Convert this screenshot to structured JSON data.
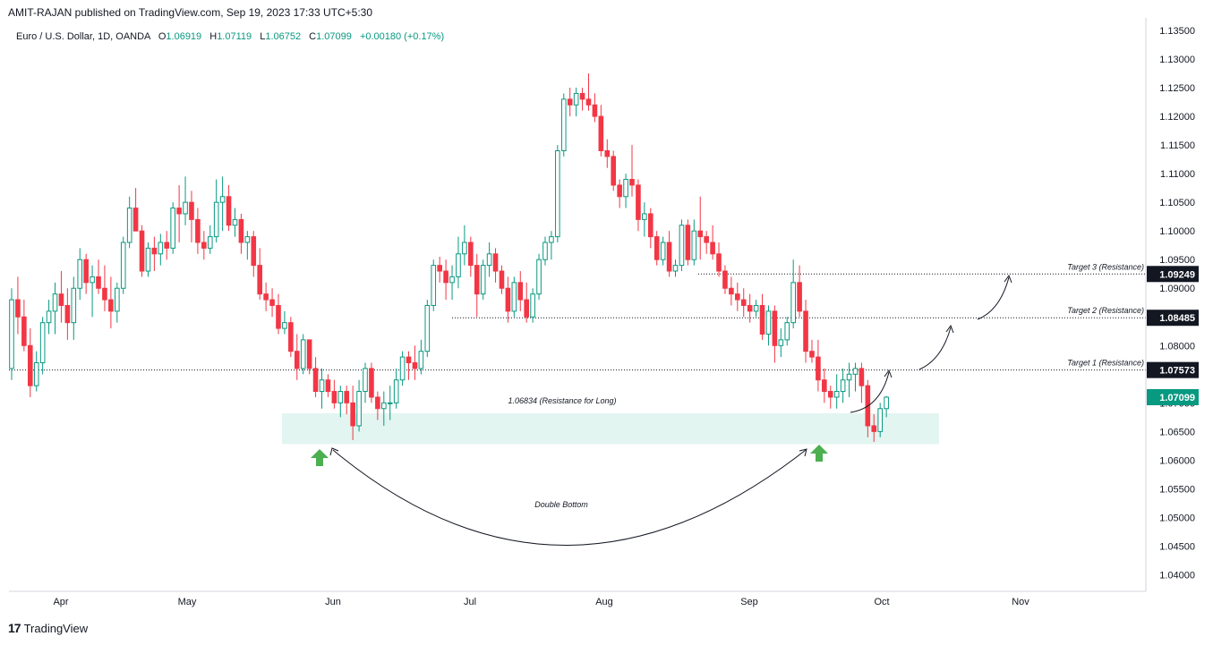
{
  "header": {
    "publisher": "AMIT-RAJAN published on TradingView.com, Sep 19, 2023 17:33 UTC+5:30"
  },
  "legend": {
    "symbol": "Euro / U.S. Dollar, 1D, OANDA",
    "open_label": "O",
    "open": "1.06919",
    "high_label": "H",
    "high": "1.07119",
    "low_label": "L",
    "low": "1.06752",
    "close_label": "C",
    "close": "1.07099",
    "change": "+0.00180 (+0.17%)"
  },
  "footer": {
    "logo_text": "TradingView",
    "logo_icon": "tradingview-logo-icon"
  },
  "colors": {
    "up": "#089981",
    "down": "#f23645",
    "zone": "#e3f5f1",
    "arrow": "#4caf50",
    "last_price_bg": "#089981",
    "target_bg": "#131722"
  },
  "chart_data": {
    "type": "candlestick",
    "symbol": "EURUSD",
    "timeframe": "1D",
    "y_axis": {
      "ticks": [
        "1.13500",
        "1.13000",
        "1.12500",
        "1.12000",
        "1.11500",
        "1.11000",
        "1.10500",
        "1.10000",
        "1.09500",
        "1.09000",
        "1.08500",
        "1.08000",
        "1.07500",
        "1.07000",
        "1.06500",
        "1.06000",
        "1.05500",
        "1.05000",
        "1.04500",
        "1.04000"
      ],
      "range": [
        1.0375,
        1.1365
      ]
    },
    "x_axis": {
      "ticks": [
        "Apr",
        "May",
        "Jun",
        "Jul",
        "Aug",
        "Sep",
        "Oct",
        "Nov"
      ]
    },
    "ohlc": [
      [
        1.076,
        1.09,
        1.074,
        1.088
      ],
      [
        1.088,
        1.092,
        1.082,
        1.085
      ],
      [
        1.085,
        1.088,
        1.079,
        1.08
      ],
      [
        1.08,
        1.083,
        1.071,
        1.073
      ],
      [
        1.073,
        1.079,
        1.072,
        1.077
      ],
      [
        1.077,
        1.085,
        1.075,
        1.084
      ],
      [
        1.084,
        1.088,
        1.082,
        1.086
      ],
      [
        1.086,
        1.091,
        1.082,
        1.089
      ],
      [
        1.089,
        1.093,
        1.084,
        1.087
      ],
      [
        1.087,
        1.09,
        1.081,
        1.084
      ],
      [
        1.084,
        1.092,
        1.081,
        1.09
      ],
      [
        1.09,
        1.097,
        1.088,
        1.095
      ],
      [
        1.095,
        1.096,
        1.089,
        1.091
      ],
      [
        1.091,
        1.094,
        1.085,
        1.092
      ],
      [
        1.092,
        1.095,
        1.089,
        1.09
      ],
      [
        1.09,
        1.094,
        1.086,
        1.088
      ],
      [
        1.088,
        1.092,
        1.083,
        1.086
      ],
      [
        1.086,
        1.091,
        1.084,
        1.09
      ],
      [
        1.09,
        1.099,
        1.089,
        1.098
      ],
      [
        1.098,
        1.106,
        1.097,
        1.104
      ],
      [
        1.104,
        1.1075,
        1.1,
        1.1
      ],
      [
        1.1,
        1.101,
        1.092,
        1.093
      ],
      [
        1.093,
        1.098,
        1.092,
        1.097
      ],
      [
        1.097,
        1.099,
        1.093,
        1.096
      ],
      [
        1.096,
        1.0995,
        1.094,
        1.098
      ],
      [
        1.098,
        1.1,
        1.095,
        1.097
      ],
      [
        1.097,
        1.105,
        1.096,
        1.104
      ],
      [
        1.104,
        1.108,
        1.098,
        1.103
      ],
      [
        1.103,
        1.1095,
        1.101,
        1.105
      ],
      [
        1.105,
        1.107,
        1.098,
        1.102
      ],
      [
        1.102,
        1.104,
        1.096,
        1.098
      ],
      [
        1.098,
        1.1,
        1.095,
        1.097
      ],
      [
        1.097,
        1.101,
        1.096,
        1.099
      ],
      [
        1.099,
        1.109,
        1.098,
        1.105
      ],
      [
        1.105,
        1.1095,
        1.1,
        1.106
      ],
      [
        1.106,
        1.108,
        1.1,
        1.101
      ],
      [
        1.101,
        1.104,
        1.099,
        1.102
      ],
      [
        1.102,
        1.103,
        1.096,
        1.098
      ],
      [
        1.098,
        1.1,
        1.095,
        1.099
      ],
      [
        1.099,
        1.1,
        1.092,
        1.094
      ],
      [
        1.094,
        1.097,
        1.088,
        1.089
      ],
      [
        1.089,
        1.091,
        1.086,
        1.088
      ],
      [
        1.088,
        1.09,
        1.085,
        1.087
      ],
      [
        1.087,
        1.089,
        1.082,
        1.083
      ],
      [
        1.083,
        1.086,
        1.082,
        1.084
      ],
      [
        1.084,
        1.085,
        1.078,
        1.079
      ],
      [
        1.079,
        1.082,
        1.074,
        1.076
      ],
      [
        1.076,
        1.082,
        1.075,
        1.081
      ],
      [
        1.081,
        1.081,
        1.075,
        1.076
      ],
      [
        1.076,
        1.078,
        1.071,
        1.072
      ],
      [
        1.072,
        1.076,
        1.069,
        1.074
      ],
      [
        1.074,
        1.075,
        1.071,
        1.072
      ],
      [
        1.072,
        1.074,
        1.069,
        1.07
      ],
      [
        1.07,
        1.073,
        1.0675,
        1.072
      ],
      [
        1.072,
        1.073,
        1.068,
        1.07
      ],
      [
        1.07,
        1.073,
        1.0635,
        1.066
      ],
      [
        1.066,
        1.074,
        1.065,
        1.072
      ],
      [
        1.072,
        1.077,
        1.07,
        1.076
      ],
      [
        1.076,
        1.077,
        1.07,
        1.071
      ],
      [
        1.071,
        1.072,
        1.067,
        1.069
      ],
      [
        1.069,
        1.072,
        1.066,
        1.07
      ],
      [
        1.07,
        1.073,
        1.067,
        1.07
      ],
      [
        1.07,
        1.076,
        1.069,
        1.074
      ],
      [
        1.074,
        1.079,
        1.073,
        1.078
      ],
      [
        1.078,
        1.079,
        1.074,
        1.077
      ],
      [
        1.077,
        1.08,
        1.074,
        1.076
      ],
      [
        1.076,
        1.081,
        1.075,
        1.079
      ],
      [
        1.079,
        1.088,
        1.078,
        1.087
      ],
      [
        1.087,
        1.095,
        1.086,
        1.094
      ],
      [
        1.094,
        1.0955,
        1.091,
        1.093
      ],
      [
        1.093,
        1.095,
        1.088,
        1.091
      ],
      [
        1.091,
        1.094,
        1.088,
        1.092
      ],
      [
        1.092,
        1.099,
        1.09,
        1.096
      ],
      [
        1.096,
        1.101,
        1.094,
        1.098
      ],
      [
        1.098,
        1.099,
        1.092,
        1.094
      ],
      [
        1.094,
        1.096,
        1.085,
        1.089
      ],
      [
        1.089,
        1.095,
        1.088,
        1.094
      ],
      [
        1.094,
        1.098,
        1.092,
        1.096
      ],
      [
        1.096,
        1.097,
        1.091,
        1.093
      ],
      [
        1.093,
        1.094,
        1.089,
        1.09
      ],
      [
        1.09,
        1.092,
        1.084,
        1.086
      ],
      [
        1.086,
        1.092,
        1.085,
        1.091
      ],
      [
        1.091,
        1.093,
        1.086,
        1.088
      ],
      [
        1.088,
        1.091,
        1.084,
        1.085
      ],
      [
        1.085,
        1.09,
        1.084,
        1.089
      ],
      [
        1.089,
        1.096,
        1.088,
        1.095
      ],
      [
        1.095,
        1.099,
        1.094,
        1.098
      ],
      [
        1.098,
        1.1,
        1.095,
        1.099
      ],
      [
        1.099,
        1.115,
        1.098,
        1.114
      ],
      [
        1.114,
        1.124,
        1.113,
        1.123
      ],
      [
        1.123,
        1.125,
        1.12,
        1.122
      ],
      [
        1.122,
        1.125,
        1.12,
        1.124
      ],
      [
        1.124,
        1.125,
        1.121,
        1.123
      ],
      [
        1.123,
        1.1275,
        1.121,
        1.122
      ],
      [
        1.122,
        1.124,
        1.119,
        1.12
      ],
      [
        1.12,
        1.122,
        1.113,
        1.114
      ],
      [
        1.114,
        1.116,
        1.111,
        1.113
      ],
      [
        1.113,
        1.114,
        1.107,
        1.108
      ],
      [
        1.108,
        1.109,
        1.104,
        1.106
      ],
      [
        1.106,
        1.11,
        1.104,
        1.109
      ],
      [
        1.109,
        1.115,
        1.106,
        1.108
      ],
      [
        1.108,
        1.109,
        1.1,
        1.102
      ],
      [
        1.102,
        1.105,
        1.099,
        1.103
      ],
      [
        1.103,
        1.104,
        1.097,
        1.099
      ],
      [
        1.099,
        1.1,
        1.094,
        1.095
      ],
      [
        1.095,
        1.099,
        1.094,
        1.098
      ],
      [
        1.098,
        1.1,
        1.092,
        1.093
      ],
      [
        1.093,
        1.095,
        1.092,
        1.094
      ],
      [
        1.094,
        1.102,
        1.093,
        1.101
      ],
      [
        1.101,
        1.102,
        1.094,
        1.095
      ],
      [
        1.095,
        1.102,
        1.094,
        1.1
      ],
      [
        1.1,
        1.106,
        1.095,
        1.099
      ],
      [
        1.099,
        1.1,
        1.096,
        1.098
      ],
      [
        1.098,
        1.101,
        1.095,
        1.096
      ],
      [
        1.096,
        1.098,
        1.092,
        1.093
      ],
      [
        1.093,
        1.094,
        1.089,
        1.09
      ],
      [
        1.09,
        1.092,
        1.087,
        1.089
      ],
      [
        1.089,
        1.091,
        1.086,
        1.088
      ],
      [
        1.088,
        1.09,
        1.085,
        1.087
      ],
      [
        1.087,
        1.089,
        1.084,
        1.086
      ],
      [
        1.086,
        1.088,
        1.085,
        1.087
      ],
      [
        1.087,
        1.089,
        1.081,
        1.082
      ],
      [
        1.082,
        1.087,
        1.08,
        1.086
      ],
      [
        1.086,
        1.087,
        1.077,
        1.08
      ],
      [
        1.08,
        1.083,
        1.078,
        1.081
      ],
      [
        1.081,
        1.085,
        1.08,
        1.084
      ],
      [
        1.084,
        1.095,
        1.083,
        1.091
      ],
      [
        1.091,
        1.094,
        1.085,
        1.086
      ],
      [
        1.086,
        1.088,
        1.077,
        1.079
      ],
      [
        1.079,
        1.081,
        1.077,
        1.078
      ],
      [
        1.078,
        1.081,
        1.072,
        1.074
      ],
      [
        1.074,
        1.076,
        1.07,
        1.072
      ],
      [
        1.072,
        1.073,
        1.069,
        1.071
      ],
      [
        1.071,
        1.075,
        1.069,
        1.072
      ],
      [
        1.072,
        1.076,
        1.07,
        1.074
      ],
      [
        1.074,
        1.077,
        1.071,
        1.075
      ],
      [
        1.075,
        1.077,
        1.072,
        1.076
      ],
      [
        1.076,
        1.077,
        1.07,
        1.073
      ],
      [
        1.073,
        1.074,
        1.064,
        1.066
      ],
      [
        1.066,
        1.068,
        1.0632,
        1.065
      ],
      [
        1.065,
        1.07,
        1.064,
        1.069
      ],
      [
        1.069,
        1.0712,
        1.0675,
        1.071
      ]
    ],
    "levels": [
      {
        "label": "Target 1 (Resistance)",
        "value": "1.07573",
        "price": 1.07573
      },
      {
        "label": "Target 2 (Resistance)",
        "value": "1.08485",
        "price": 1.08485
      },
      {
        "label": "Target 3 (Resistance)",
        "value": "1.09249",
        "price": 1.09249
      }
    ],
    "last_price": {
      "value": "1.07099",
      "price": 1.07099
    },
    "zone": {
      "label": "1.06834 (Resistance for Long)",
      "top": 1.0682,
      "bottom": 1.0628
    },
    "annotation": "Double Bottom"
  }
}
